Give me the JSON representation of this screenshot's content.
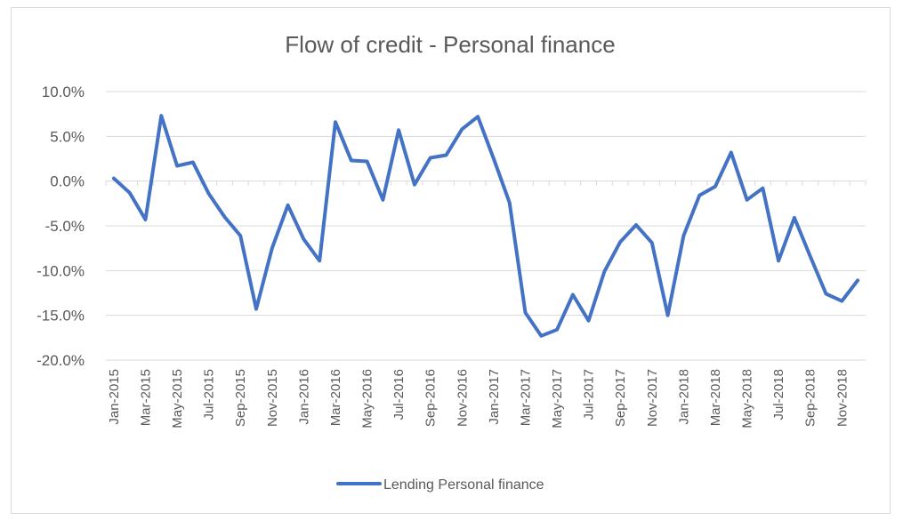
{
  "chart_data": {
    "type": "line",
    "title": "Flow of credit - Personal finance",
    "xlabel": "",
    "ylabel": "",
    "ylim": [
      -20,
      10
    ],
    "y_ticks": [
      10,
      5,
      0,
      -5,
      -10,
      -15,
      -20
    ],
    "y_tick_labels": [
      "10.0%",
      "5.0%",
      "0.0%",
      "-5.0%",
      "-10.0%",
      "-15.0%",
      "-20.0%"
    ],
    "categories": [
      "Jan-2015",
      "Feb-2015",
      "Mar-2015",
      "Apr-2015",
      "May-2015",
      "Jun-2015",
      "Jul-2015",
      "Aug-2015",
      "Sep-2015",
      "Oct-2015",
      "Nov-2015",
      "Dec-2015",
      "Jan-2016",
      "Feb-2016",
      "Mar-2016",
      "Apr-2016",
      "May-2016",
      "Jun-2016",
      "Jul-2016",
      "Aug-2016",
      "Sep-2016",
      "Oct-2016",
      "Nov-2016",
      "Dec-2016",
      "Jan-2017",
      "Feb-2017",
      "Mar-2017",
      "Apr-2017",
      "May-2017",
      "Jun-2017",
      "Jul-2017",
      "Aug-2017",
      "Sep-2017",
      "Oct-2017",
      "Nov-2017",
      "Dec-2017",
      "Jan-2018",
      "Feb-2018",
      "Mar-2018",
      "Apr-2018",
      "May-2018",
      "Jun-2018",
      "Jul-2018",
      "Aug-2018",
      "Sep-2018",
      "Oct-2018",
      "Nov-2018",
      "Dec-2018"
    ],
    "x_tick_labels": [
      "Jan-2015",
      "Mar-2015",
      "May-2015",
      "Jul-2015",
      "Sep-2015",
      "Nov-2015",
      "Jan-2016",
      "Mar-2016",
      "May-2016",
      "Jul-2016",
      "Sep-2016",
      "Nov-2016",
      "Jan-2017",
      "Mar-2017",
      "May-2017",
      "Jul-2017",
      "Sep-2017",
      "Nov-2017",
      "Jan-2018",
      "Mar-2018",
      "May-2018",
      "Jul-2018",
      "Sep-2018",
      "Nov-2018"
    ],
    "series": [
      {
        "name": "Lending Personal finance",
        "color": "#4472c4",
        "values": [
          0.3,
          -1.3,
          -4.3,
          7.3,
          1.7,
          2.1,
          -1.4,
          -4.0,
          -6.1,
          -14.3,
          -7.5,
          -2.7,
          -6.5,
          -8.9,
          6.6,
          2.3,
          2.2,
          -2.1,
          5.7,
          -0.4,
          2.6,
          2.9,
          5.8,
          7.2,
          2.5,
          -2.4,
          -14.7,
          -17.3,
          -16.6,
          -12.7,
          -15.6,
          -10.1,
          -6.8,
          -4.9,
          -6.9,
          -15.0,
          -6.1,
          -1.6,
          -0.6,
          3.2,
          -2.1,
          -0.8,
          -8.9,
          -4.1,
          -8.4,
          -12.6,
          -13.4,
          -11.1
        ]
      }
    ],
    "grid": true,
    "legend_position": "bottom"
  }
}
